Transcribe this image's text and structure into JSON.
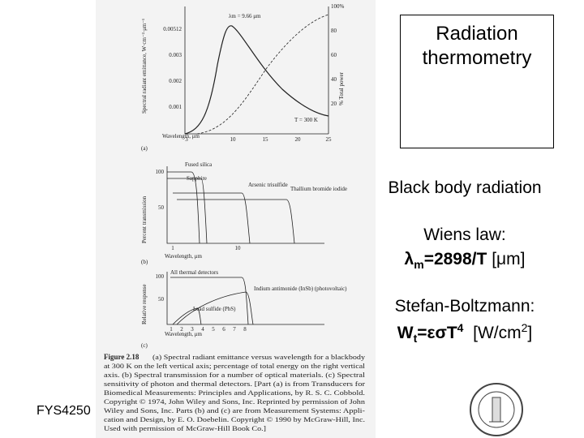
{
  "figure": {
    "graph_a": {
      "panel": "(a)",
      "peak": "λm = 9.66 μm",
      "temperature": "T = 300 K",
      "y_label": "Spectral radiant emittance, W·cm⁻²·μm⁻¹",
      "y2_label": "% Total power",
      "x_label": "Wavelength, μm",
      "y_ticks": [
        "0.00512",
        "0.003",
        "0.002",
        "0.001"
      ],
      "y2_ticks": [
        "100%",
        "80",
        "60",
        "40",
        "20"
      ],
      "x_ticks": [
        "3",
        "10",
        "15",
        "20",
        "25"
      ]
    },
    "graph_b": {
      "panel": "(b)",
      "y_label": "Percent transmission",
      "x_label": "Wavelength, μm",
      "y_ticks": [
        "100",
        "50"
      ],
      "x_ticks": [
        "1",
        "10"
      ],
      "curves": [
        "Fused silica",
        "Sapphire",
        "Arsenic trisulfide",
        "Thallium bromide iodide"
      ]
    },
    "graph_c": {
      "panel": "(c)",
      "y_label": "Relative response",
      "x_label": "Wavelength, μm",
      "y_ticks": [
        "100",
        "50"
      ],
      "x_ticks": [
        "1",
        "2",
        "3",
        "4",
        "5",
        "6",
        "7",
        "8"
      ],
      "curves": [
        "All thermal detectors",
        "Indium antimonide (InSb) (photovoltaic)",
        "Lead sulfide (PbS)"
      ]
    },
    "caption": {
      "label": "Figure 2.18",
      "lines": [
        "(a) Spectral radiant emittance versus wavelength for a blackbody",
        "at 300 K on the left vertical axis; percentage of total energy on the right vertical",
        "axis. (b) Spectral transmission for a number of optical materials. (c) Spectral",
        "sensitivity of photon and thermal detectors. [Part (a) is from Transducers for",
        "Biomedical Measurements: Principles and Applications, by R. S. C. Cobbold.",
        "Copyright © 1974, John Wiley and Sons, Inc. Reprinted by permission of John",
        "Wiley and Sons, Inc. Parts (b) and (c) are from Measurement Systems: Appli-",
        "cation and Design, by E. O. Doebelin. Copyright © 1990 by McGraw-Hill, Inc.",
        "Used with permission of McGraw-Hill Book Co.]"
      ]
    }
  },
  "slide": {
    "title": "Radiation thermometry",
    "subtitle": "Black body radiation",
    "wien": {
      "heading": "Wiens law:",
      "symbol": "λ",
      "sub": "m",
      "equation": "=2898/T",
      "unit": "[μm]"
    },
    "stefan": {
      "heading": "Stefan-Boltzmann:",
      "symbol": "W",
      "sub": "t",
      "equation": "=εσT",
      "power": "4",
      "unit": "[W/cm",
      "unit_power": "2",
      "unit_end": "]"
    },
    "footer": "FYS4250"
  }
}
